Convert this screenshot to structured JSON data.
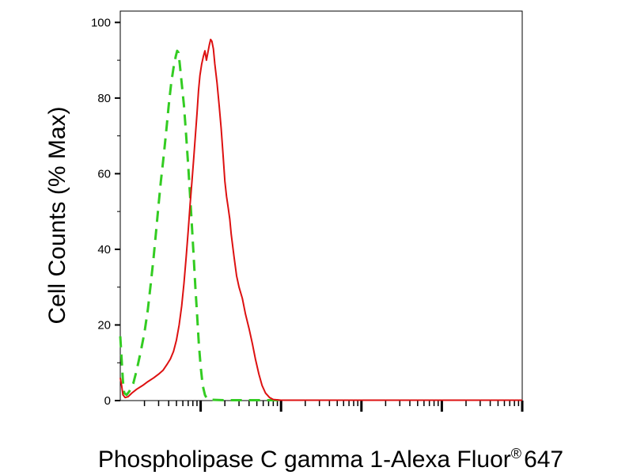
{
  "chart_data": {
    "type": "line",
    "title": "",
    "ylabel": "Cell Counts (% Max)",
    "xlabel": "Phospholipase C gamma 1-Alexa Fluor",
    "xlabel_superscript": "®",
    "xlabel_suffix": "647",
    "xscale": "log",
    "xlim": [
      1,
      100000
    ],
    "ylim": [
      0,
      103
    ],
    "yticks": [
      "0",
      "20",
      "40",
      "60",
      "80",
      "100"
    ],
    "ytick_values": [
      0,
      20,
      40,
      60,
      80,
      100
    ],
    "grid": false,
    "legend": "none",
    "series": [
      {
        "color": "#33cc22",
        "dash": "dashed",
        "points": [
          [
            1.0,
            17
          ],
          [
            1.04,
            11
          ],
          [
            1.08,
            5
          ],
          [
            1.12,
            2
          ],
          [
            1.2,
            1.5
          ],
          [
            1.3,
            2.5
          ],
          [
            1.45,
            4.5
          ],
          [
            1.6,
            8
          ],
          [
            1.8,
            13
          ],
          [
            2.0,
            18
          ],
          [
            2.2,
            24
          ],
          [
            2.4,
            31
          ],
          [
            2.6,
            38
          ],
          [
            2.8,
            45
          ],
          [
            3.0,
            52
          ],
          [
            3.2,
            58
          ],
          [
            3.4,
            63
          ],
          [
            3.6,
            68
          ],
          [
            3.8,
            73
          ],
          [
            4.0,
            78
          ],
          [
            4.3,
            84
          ],
          [
            4.6,
            88
          ],
          [
            4.9,
            91
          ],
          [
            5.1,
            92.5
          ],
          [
            5.3,
            92
          ],
          [
            5.5,
            89
          ],
          [
            5.8,
            84
          ],
          [
            6.2,
            78
          ],
          [
            6.6,
            70
          ],
          [
            7.0,
            62
          ],
          [
            7.4,
            54
          ],
          [
            7.8,
            46
          ],
          [
            8.2,
            38
          ],
          [
            8.6,
            30
          ],
          [
            9.0,
            23
          ],
          [
            9.5,
            15
          ],
          [
            10,
            9
          ],
          [
            10.6,
            4
          ],
          [
            11.3,
            1.5
          ],
          [
            12,
            0.5
          ],
          [
            14,
            0.2
          ],
          [
            20,
            0.1
          ],
          [
            50,
            0.1
          ],
          [
            100,
            0.1
          ]
        ]
      },
      {
        "color": "#dd1111",
        "dash": "solid",
        "points": [
          [
            1.0,
            6
          ],
          [
            1.04,
            4
          ],
          [
            1.08,
            1.5
          ],
          [
            1.15,
            0.8
          ],
          [
            1.25,
            1
          ],
          [
            1.4,
            2
          ],
          [
            1.6,
            3
          ],
          [
            1.9,
            4
          ],
          [
            2.2,
            5
          ],
          [
            2.6,
            6
          ],
          [
            3.0,
            7
          ],
          [
            3.4,
            8
          ],
          [
            3.8,
            9.5
          ],
          [
            4.2,
            11
          ],
          [
            4.6,
            13
          ],
          [
            5.0,
            16
          ],
          [
            5.4,
            20
          ],
          [
            5.8,
            25
          ],
          [
            6.2,
            31
          ],
          [
            6.6,
            38
          ],
          [
            7.0,
            45
          ],
          [
            7.4,
            52
          ],
          [
            7.8,
            58
          ],
          [
            8.2,
            64
          ],
          [
            8.6,
            70
          ],
          [
            9.0,
            76
          ],
          [
            9.4,
            82
          ],
          [
            9.8,
            86
          ],
          [
            10.3,
            89
          ],
          [
            10.8,
            91
          ],
          [
            11.3,
            92.5
          ],
          [
            11.8,
            90
          ],
          [
            12.3,
            92
          ],
          [
            12.8,
            94
          ],
          [
            13.3,
            95.5
          ],
          [
            13.8,
            95
          ],
          [
            14.4,
            93
          ],
          [
            15,
            89
          ],
          [
            16,
            84
          ],
          [
            17,
            78
          ],
          [
            18,
            72
          ],
          [
            19,
            65
          ],
          [
            20,
            58
          ],
          [
            21,
            54
          ],
          [
            22,
            51
          ],
          [
            23,
            48
          ],
          [
            24,
            44
          ],
          [
            26,
            38
          ],
          [
            28,
            33
          ],
          [
            30,
            30
          ],
          [
            33,
            27
          ],
          [
            36,
            23
          ],
          [
            40,
            19
          ],
          [
            44,
            15
          ],
          [
            48,
            11
          ],
          [
            53,
            7
          ],
          [
            58,
            4
          ],
          [
            64,
            2
          ],
          [
            72,
            0.8
          ],
          [
            80,
            0.3
          ],
          [
            100,
            0.1
          ],
          [
            1000,
            0.1
          ],
          [
            100000,
            0.1
          ]
        ]
      }
    ]
  }
}
